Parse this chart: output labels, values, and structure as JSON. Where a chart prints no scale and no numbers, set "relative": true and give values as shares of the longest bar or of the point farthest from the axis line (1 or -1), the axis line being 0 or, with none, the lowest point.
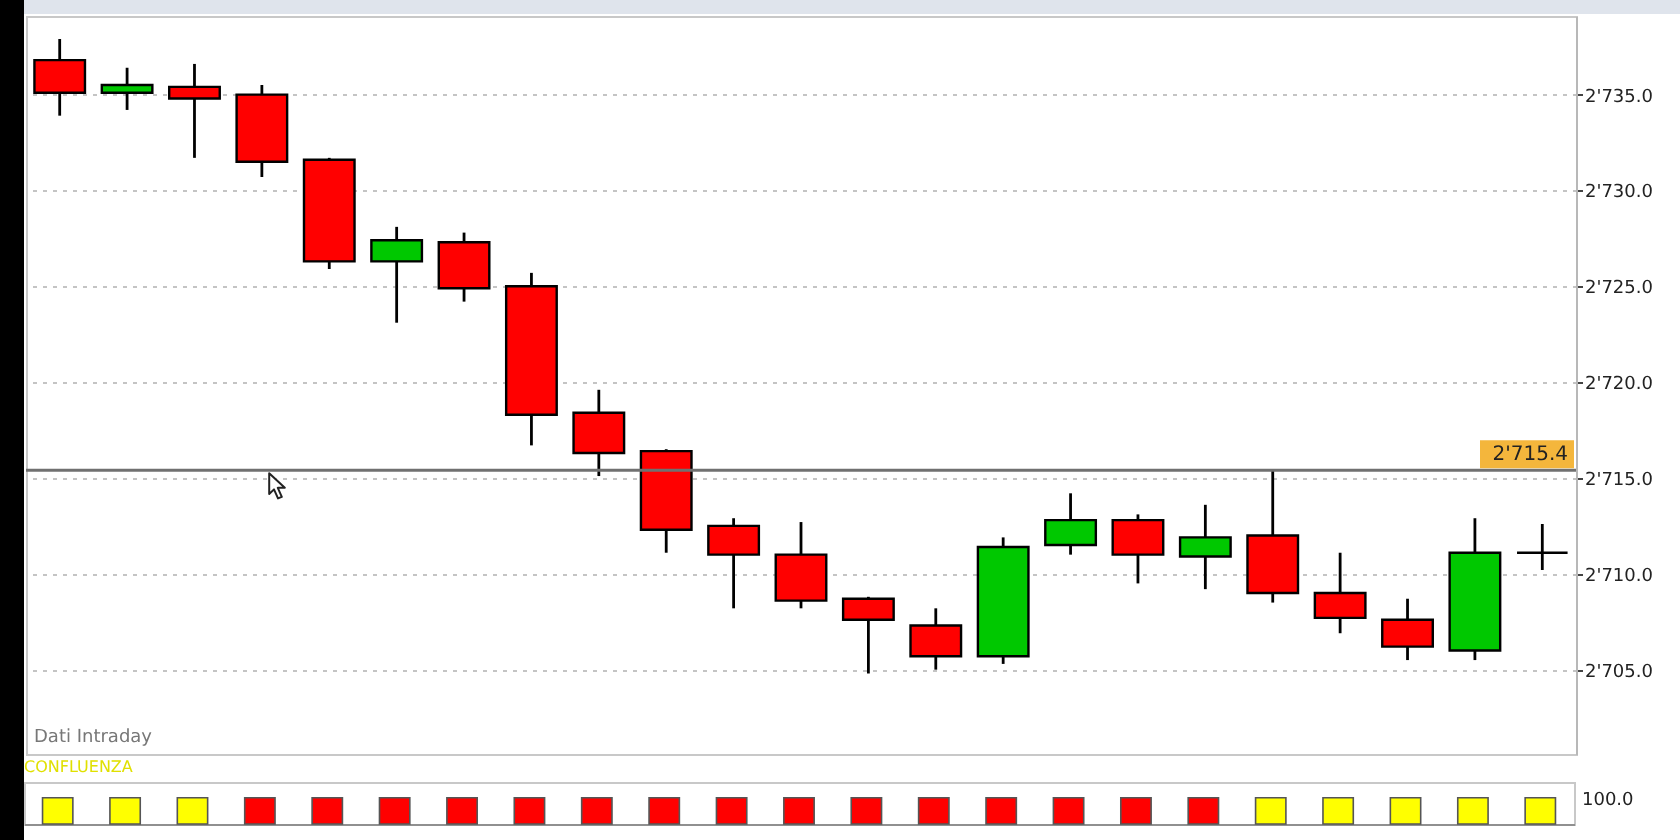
{
  "chart_data": [
    {
      "type": "candlestick",
      "categories": [
        null,
        null,
        null,
        null,
        null,
        null,
        null,
        null,
        null,
        null,
        null,
        null,
        null,
        null,
        null,
        null,
        null,
        null,
        null,
        null,
        null,
        null,
        null
      ],
      "ohlc": [
        [
          2736.8,
          2737.9,
          2733.9,
          2735.1
        ],
        [
          2735.1,
          2736.4,
          2734.2,
          2735.5
        ],
        [
          2735.4,
          2736.6,
          2731.7,
          2734.8
        ],
        [
          2735.0,
          2735.5,
          2730.7,
          2731.5
        ],
        [
          2731.6,
          2731.7,
          2725.9,
          2726.3
        ],
        [
          2726.3,
          2728.1,
          2723.1,
          2727.4
        ],
        [
          2727.3,
          2727.8,
          2724.2,
          2724.9
        ],
        [
          2725.0,
          2725.7,
          2716.7,
          2718.3
        ],
        [
          2718.4,
          2719.6,
          2715.1,
          2716.3
        ],
        [
          2716.4,
          2716.5,
          2711.1,
          2712.3
        ],
        [
          2712.5,
          2712.9,
          2708.2,
          2711.0
        ],
        [
          2711.0,
          2712.7,
          2708.2,
          2708.6
        ],
        [
          2708.7,
          2708.8,
          2704.8,
          2707.6
        ],
        [
          2707.3,
          2708.2,
          2705.0,
          2705.7
        ],
        [
          2705.7,
          2711.9,
          2705.3,
          2711.4
        ],
        [
          2711.5,
          2714.2,
          2711.0,
          2712.8
        ],
        [
          2712.8,
          2713.1,
          2709.5,
          2711.0
        ],
        [
          2710.9,
          2713.6,
          2709.2,
          2711.9
        ],
        [
          2712.0,
          2715.4,
          2708.5,
          2709.0
        ],
        [
          2709.0,
          2711.1,
          2706.9,
          2707.7
        ],
        [
          2707.6,
          2708.7,
          2705.5,
          2706.2
        ],
        [
          2706.0,
          2712.9,
          2705.5,
          2711.1
        ],
        [
          2711.1,
          2712.6,
          2710.2,
          2711.1
        ]
      ],
      "colors": [
        "#ff0000",
        "#00c800",
        "#ff0000",
        "#ff0000",
        "#ff0000",
        "#00c800",
        "#ff0000",
        "#ff0000",
        "#ff0000",
        "#ff0000",
        "#ff0000",
        "#ff0000",
        "#ff0000",
        "#ff0000",
        "#00c800",
        "#00c800",
        "#ff0000",
        "#00c800",
        "#ff0000",
        "#ff0000",
        "#ff0000",
        "#00c800",
        "#000000"
      ],
      "ylim": [
        2700.6,
        2739.1
      ],
      "yticks": [
        {
          "value": 2705,
          "label": "2'705.0"
        },
        {
          "value": 2710,
          "label": "2'710.0"
        },
        {
          "value": 2715,
          "label": "2'715.0"
        },
        {
          "value": 2720,
          "label": "2'720.0"
        },
        {
          "value": 2725,
          "label": "2'725.0"
        },
        {
          "value": 2730,
          "label": "2'730.0"
        },
        {
          "value": 2735,
          "label": "2'735.0"
        }
      ],
      "grid": "y",
      "tick_labels": "y",
      "ref_lines": [
        {
          "axis": "y",
          "value": 2715.4,
          "label": "2'715.4",
          "color": "#707070"
        }
      ],
      "annotations": [
        "Dati Intraday"
      ]
    },
    {
      "type": "bar",
      "title": "CONFLUENZA",
      "relative": true,
      "categories": [
        null,
        null,
        null,
        null,
        null,
        null,
        null,
        null,
        null,
        null,
        null,
        null,
        null,
        null,
        null,
        null,
        null,
        null,
        null,
        null,
        null,
        null,
        null
      ],
      "values": [
        1,
        1,
        1,
        1,
        1,
        1,
        1,
        1,
        1,
        1,
        1,
        1,
        1,
        1,
        1,
        1,
        1,
        1,
        1,
        1,
        1,
        1,
        1
      ],
      "colors": [
        "#ffff00",
        "#ffff00",
        "#ffff00",
        "#ff0000",
        "#ff0000",
        "#ff0000",
        "#ff0000",
        "#ff0000",
        "#ff0000",
        "#ff0000",
        "#ff0000",
        "#ff0000",
        "#ff0000",
        "#ff0000",
        "#ff0000",
        "#ff0000",
        "#ff0000",
        "#ff0000",
        "#ffff00",
        "#ffff00",
        "#ffff00",
        "#ffff00",
        "#ffff00"
      ],
      "tick_labels": false,
      "annotations": [
        "100.0"
      ]
    }
  ]
}
